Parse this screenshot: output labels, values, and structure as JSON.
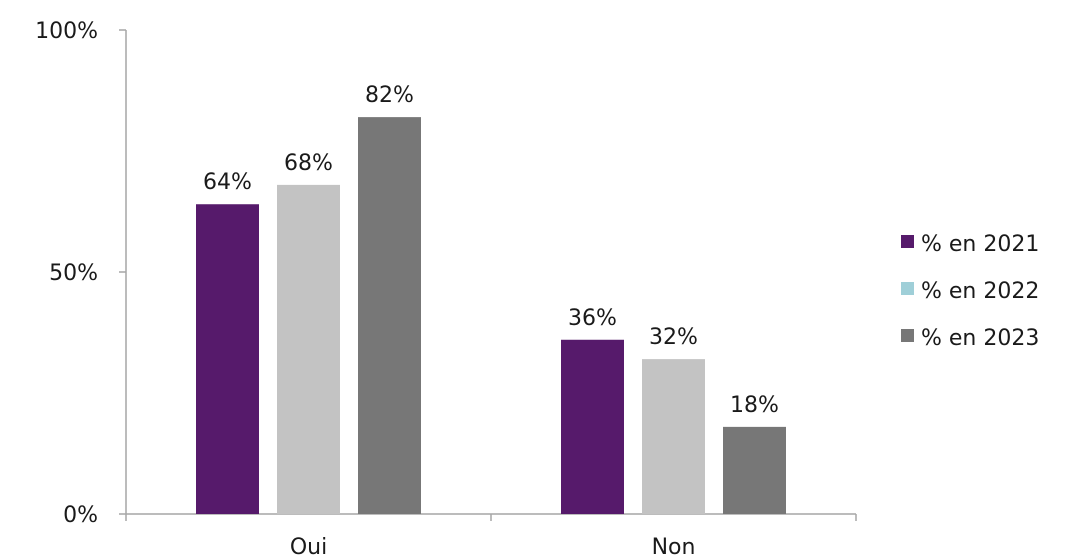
{
  "chart_data": {
    "type": "bar",
    "categories": [
      "Oui",
      "Non"
    ],
    "series": [
      {
        "name": "% en 2021",
        "values": [
          64,
          36
        ],
        "color": "#561a6b",
        "legend_color": "#561a6b"
      },
      {
        "name": "% en 2022",
        "values": [
          68,
          32
        ],
        "color": "#c3c3c3",
        "legend_color": "#9fcfd8"
      },
      {
        "name": "% en 2023",
        "values": [
          82,
          18
        ],
        "color": "#777777",
        "legend_color": "#777777"
      }
    ],
    "data_labels": [
      [
        "64%",
        "36%"
      ],
      [
        "68%",
        "32%"
      ],
      [
        "82%",
        "18%"
      ]
    ],
    "y_ticks": [
      {
        "value": 0,
        "label": "0%"
      },
      {
        "value": 50,
        "label": "50%"
      },
      {
        "value": 100,
        "label": "100%"
      }
    ],
    "ylim": [
      0,
      100
    ],
    "grid": false,
    "legend_position": "right"
  }
}
